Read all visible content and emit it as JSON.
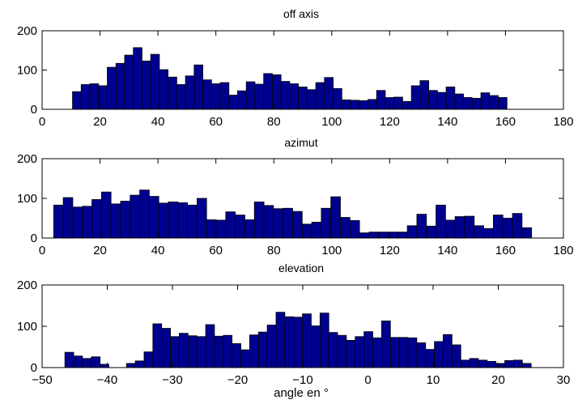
{
  "colors": {
    "bar_fill": "#00008f",
    "bar_edge": "#000000",
    "axis": "#000000",
    "background": "#ffffff"
  },
  "chart_data": [
    {
      "type": "bar",
      "title": "off axis",
      "xlabel": "",
      "ylabel": "",
      "xlim": [
        0,
        180
      ],
      "ylim": [
        0,
        200
      ],
      "xticks": [
        0,
        20,
        40,
        60,
        80,
        100,
        120,
        140,
        160,
        180
      ],
      "yticks": [
        0,
        100,
        200
      ],
      "grid": false,
      "bin_start": 10.5,
      "bin_width": 3,
      "values": [
        45,
        63,
        65,
        60,
        107,
        117,
        138,
        157,
        123,
        140,
        101,
        82,
        63,
        85,
        113,
        75,
        65,
        68,
        36,
        47,
        70,
        64,
        91,
        88,
        71,
        65,
        57,
        50,
        68,
        81,
        53,
        24,
        23,
        22,
        25,
        48,
        30,
        31,
        20,
        60,
        73,
        48,
        43,
        57,
        39,
        30,
        28,
        42,
        35,
        30
      ]
    },
    {
      "type": "bar",
      "title": "azimut",
      "xlabel": "",
      "ylabel": "",
      "xlim": [
        0,
        180
      ],
      "ylim": [
        0,
        200
      ],
      "xticks": [
        0,
        20,
        40,
        60,
        80,
        100,
        120,
        140,
        160,
        180
      ],
      "yticks": [
        0,
        100,
        200
      ],
      "grid": false,
      "bin_start": 4,
      "bin_width": 3.3,
      "values": [
        83,
        102,
        78,
        80,
        97,
        116,
        86,
        93,
        108,
        121,
        105,
        88,
        91,
        89,
        83,
        100,
        46,
        45,
        66,
        58,
        46,
        91,
        82,
        74,
        75,
        67,
        35,
        40,
        75,
        104,
        52,
        44,
        13,
        15,
        15,
        15,
        15,
        31,
        60,
        30,
        83,
        45,
        54,
        55,
        31,
        24,
        58,
        50,
        62,
        26
      ]
    },
    {
      "type": "bar",
      "title": "elevation",
      "xlabel": "angle en °",
      "ylabel": "",
      "xlim": [
        -50,
        30
      ],
      "ylim": [
        0,
        200
      ],
      "xticks": [
        -50,
        -40,
        -30,
        -20,
        -10,
        0,
        10,
        20,
        30
      ],
      "yticks": [
        0,
        100,
        200
      ],
      "grid": false,
      "bin_start": -46.5,
      "bin_width": 1.35,
      "values": [
        37,
        28,
        22,
        26,
        8,
        0,
        0,
        10,
        16,
        38,
        106,
        95,
        75,
        83,
        77,
        75,
        104,
        76,
        78,
        58,
        43,
        79,
        86,
        103,
        134,
        123,
        122,
        130,
        101,
        132,
        85,
        78,
        66,
        75,
        87,
        72,
        113,
        73,
        73,
        72,
        60,
        44,
        63,
        80,
        55,
        18,
        22,
        18,
        15,
        10,
        17,
        18,
        10
      ]
    }
  ]
}
